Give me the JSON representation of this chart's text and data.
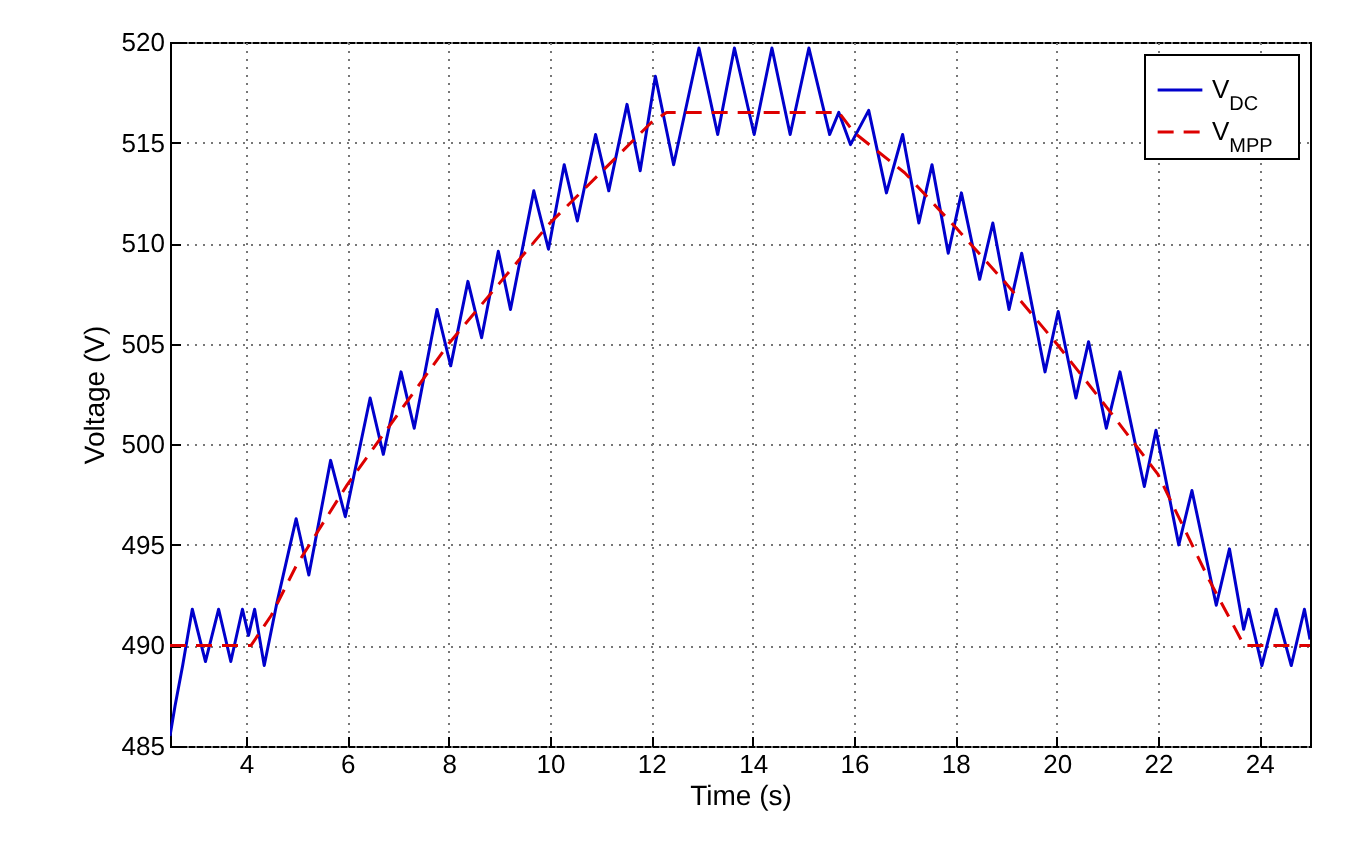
{
  "chart_data": {
    "type": "line",
    "xlabel": "Time (s)",
    "ylabel": "Voltage (V)",
    "xlim": [
      2.5,
      25
    ],
    "xticks": [
      4,
      6,
      8,
      10,
      12,
      14,
      16,
      18,
      20,
      22,
      24
    ],
    "ylim": [
      485,
      520
    ],
    "yticks": [
      485,
      490,
      495,
      500,
      505,
      510,
      515,
      520
    ],
    "grid": true,
    "legend": "top right",
    "marker": "none",
    "series": [
      {
        "name": "V$_{DC}$",
        "color": "#0000cc",
        "line_style": "solid",
        "x": [
          2.5,
          2.6,
          2.75,
          2.94,
          3.2,
          3.46,
          3.7,
          3.93,
          4.05,
          4.17,
          4.36,
          4.6,
          4.99,
          5.24,
          5.67,
          5.96,
          6.45,
          6.71,
          7.06,
          7.32,
          7.77,
          8.04,
          8.38,
          8.65,
          8.98,
          9.22,
          9.68,
          9.97,
          10.28,
          10.54,
          10.9,
          11.16,
          11.52,
          11.78,
          12.08,
          12.44,
          12.94,
          13.31,
          13.64,
          14.03,
          14.38,
          14.74,
          15.11,
          15.52,
          15.7,
          15.93,
          16.29,
          16.64,
          16.96,
          17.28,
          17.54,
          17.86,
          18.12,
          18.48,
          18.74,
          19.06,
          19.31,
          19.77,
          20.03,
          20.38,
          20.63,
          20.98,
          21.25,
          21.73,
          21.96,
          22.41,
          22.67,
          23.15,
          23.41,
          23.69,
          23.79,
          24.05,
          24.33,
          24.63,
          24.89,
          25
        ],
        "values": [
          485.5,
          487,
          489,
          491.8,
          489.2,
          491.8,
          489.2,
          491.8,
          490.5,
          491.8,
          489,
          492,
          496.3,
          493.5,
          499.2,
          496.4,
          502.3,
          499.5,
          503.6,
          500.8,
          506.7,
          503.9,
          508.1,
          505.3,
          509.6,
          506.7,
          512.6,
          509.7,
          513.9,
          511.1,
          515.4,
          512.6,
          516.9,
          513.6,
          518.3,
          513.9,
          519.7,
          515.4,
          519.7,
          515.4,
          519.7,
          515.4,
          519.7,
          515.4,
          516.5,
          514.9,
          516.6,
          512.5,
          515.4,
          511,
          513.9,
          509.5,
          512.5,
          508.2,
          511,
          506.7,
          509.5,
          503.6,
          506.6,
          502.3,
          505.1,
          500.8,
          503.6,
          497.9,
          500.7,
          495,
          497.7,
          492,
          494.8,
          490.8,
          491.8,
          489,
          491.8,
          489,
          491.8,
          490.3
        ]
      },
      {
        "name": "V$_{MPP}$",
        "color": "#dd0000",
        "line_style": "dashed",
        "x": [
          2.5,
          4.1,
          4.5,
          5,
          6,
          7,
          8,
          9,
          10,
          11,
          12,
          12.3,
          15.7,
          16,
          17,
          18,
          19,
          20,
          21,
          22,
          23,
          23.7,
          25
        ],
        "values": [
          490,
          490,
          491.5,
          494,
          498,
          501.5,
          505,
          508,
          511,
          513.5,
          516,
          516.5,
          516.5,
          515.5,
          513.5,
          510.8,
          508,
          505,
          501.8,
          498.5,
          493.3,
          490,
          490
        ]
      }
    ]
  }
}
